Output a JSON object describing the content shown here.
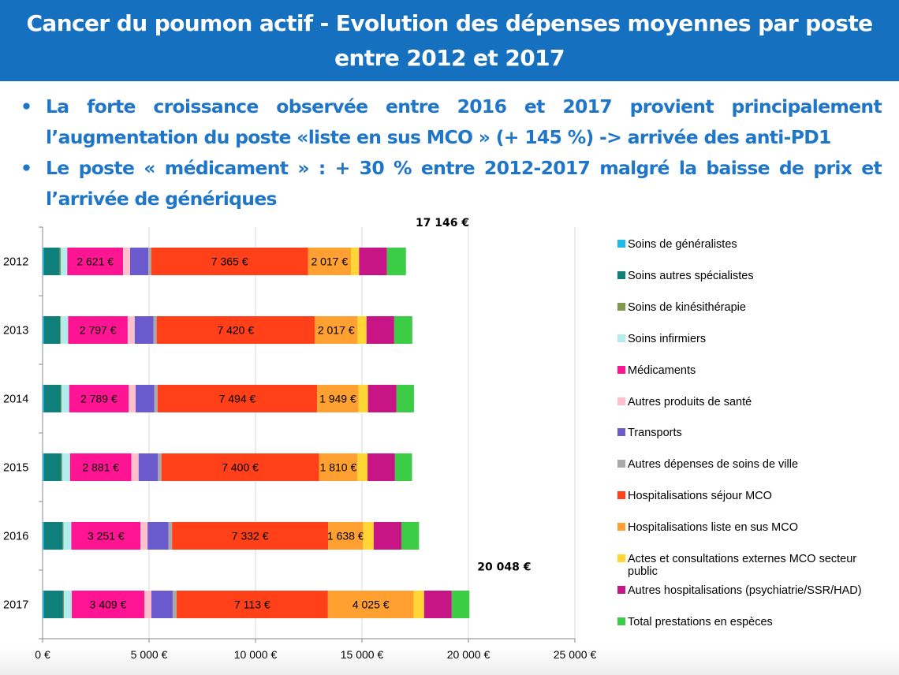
{
  "header": {
    "title_line1": "Cancer du poumon actif - Evolution des dépenses moyennes par poste",
    "title_line2": "entre 2012 et 2017"
  },
  "bullets": [
    {
      "symbol": "•",
      "text": "La forte croissance observée entre 2016 et 2017 provient principalement l’augmentation du poste «liste en sus MCO » (+ 145 %) -> arrivée des anti-PD1"
    },
    {
      "symbol": "•",
      "text": "Le poste « médicament » : + 30 % entre 2012-2017 malgré la baisse de prix et l’arrivée de génériques"
    }
  ],
  "chart_data": {
    "type": "bar",
    "orientation": "horizontal",
    "stacked": true,
    "title": "",
    "xlabel": "",
    "ylabel": "",
    "xlim": [
      0,
      25000
    ],
    "x_ticks": [
      0,
      5000,
      10000,
      15000,
      20000,
      25000
    ],
    "x_tick_labels": [
      "0 €",
      "5 000 €",
      "10 000 €",
      "15 000 €",
      "20 000 €",
      "25 000 €"
    ],
    "grid": true,
    "legend_position": "right",
    "categories": [
      "2012",
      "2013",
      "2014",
      "2015",
      "2016",
      "2017"
    ],
    "series": [
      {
        "name": "Soins de généralistes",
        "color": "#1fb8e8",
        "values": [
          60,
          60,
          60,
          60,
          60,
          60
        ],
        "labels": [
          null,
          null,
          null,
          null,
          null,
          null
        ]
      },
      {
        "name": "Soins autres spécialistes",
        "color": "#0e7f7b",
        "values": [
          740,
          760,
          790,
          820,
          880,
          900
        ],
        "labels": [
          null,
          null,
          null,
          null,
          null,
          null
        ]
      },
      {
        "name": "Soins de kinésithérapie",
        "color": "#7f9a4e",
        "values": [
          60,
          40,
          40,
          40,
          40,
          40
        ],
        "labels": [
          null,
          null,
          null,
          null,
          null,
          null
        ]
      },
      {
        "name": "Soins infirmiers",
        "color": "#b3ecec",
        "values": [
          300,
          340,
          360,
          370,
          370,
          370
        ],
        "labels": [
          null,
          null,
          null,
          null,
          null,
          null
        ]
      },
      {
        "name": "Médicaments",
        "color": "#ff1493",
        "values": [
          2621,
          2797,
          2789,
          2881,
          3251,
          3409
        ],
        "labels": [
          "2 621 €",
          "2 797 €",
          "2 789 €",
          "2 881 €",
          "3 251 €",
          "3 409 €"
        ]
      },
      {
        "name": "Autres produits de santé",
        "color": "#ffc0cb",
        "values": [
          330,
          330,
          330,
          340,
          330,
          330
        ],
        "labels": [
          null,
          null,
          null,
          null,
          null,
          null
        ]
      },
      {
        "name": "Transports",
        "color": "#6a5acd",
        "values": [
          860,
          880,
          880,
          910,
          980,
          1000
        ],
        "labels": [
          null,
          null,
          null,
          null,
          null,
          null
        ]
      },
      {
        "name": "Autres dépenses de soins de ville",
        "color": "#a9a9a9",
        "values": [
          130,
          150,
          150,
          160,
          170,
          180
        ],
        "labels": [
          null,
          null,
          null,
          null,
          null,
          null
        ]
      },
      {
        "name": "Hospitalisations séjour MCO",
        "color": "#ff4019",
        "values": [
          7365,
          7420,
          7494,
          7400,
          7332,
          7113
        ],
        "labels": [
          "7 365 €",
          "7 420 €",
          "7 494 €",
          "7 400 €",
          "7 332 €",
          "7 113 €"
        ]
      },
      {
        "name": "Hospitalisations liste en sus MCO",
        "color": "#ffa030",
        "values": [
          2017,
          2017,
          1949,
          1810,
          1638,
          4025
        ],
        "labels": [
          "2 017 €",
          "2 017 €",
          "1 949 €",
          "1 810 €",
          "1 638 €",
          "4 025 €"
        ]
      },
      {
        "name": "Actes et consultations externes MCO secteur public",
        "color": "#ffd633",
        "values": [
          380,
          420,
          440,
          470,
          500,
          490
        ],
        "labels": [
          null,
          null,
          null,
          null,
          null,
          null
        ]
      },
      {
        "name": "Autres hospitalisations (psychiatrie/SSR/HAD)",
        "color": "#c71585",
        "values": [
          1313,
          1300,
          1340,
          1290,
          1300,
          1300
        ],
        "labels": [
          null,
          null,
          null,
          null,
          null,
          null
        ]
      },
      {
        "name": "Total prestations en espèces",
        "color": "#3ccc46",
        "values": [
          890,
          850,
          820,
          800,
          830,
          831
        ],
        "labels": [
          null,
          null,
          null,
          null,
          null,
          null
        ]
      }
    ],
    "annotations": [
      {
        "category": "2012",
        "text": "17 146 €",
        "value": 17146
      },
      {
        "category": "2017",
        "text": "20 048 €",
        "value": 20048
      }
    ]
  }
}
